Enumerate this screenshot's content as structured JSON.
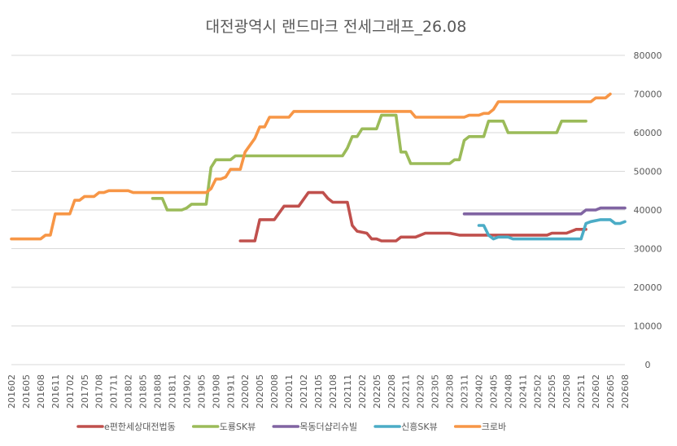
{
  "chart_data": {
    "type": "line",
    "title": "대전광역시 랜드마크 전세그래프_26.08",
    "xlabel": "",
    "ylabel": "",
    "ylim": [
      0,
      80000
    ],
    "yticks": [
      0,
      10000,
      20000,
      30000,
      40000,
      50000,
      60000,
      70000,
      80000
    ],
    "ytick_labels": [
      "0",
      "10000",
      "20000",
      "30000",
      "40000",
      "50000",
      "60000",
      "70000",
      "80000"
    ],
    "y_axis_side": "right",
    "grid": true,
    "legend_position": "bottom",
    "xtick_labels": [
      "201602",
      "201605",
      "201608",
      "201611",
      "201702",
      "201705",
      "201708",
      "201711",
      "201802",
      "201805",
      "201808",
      "201811",
      "201902",
      "201905",
      "201908",
      "201911",
      "202002",
      "202005",
      "202008",
      "202011",
      "202102",
      "202105",
      "202108",
      "202111",
      "202202",
      "202205",
      "202208",
      "202211",
      "202302",
      "202305",
      "202308",
      "202311",
      "202402",
      "202405",
      "202408",
      "202411",
      "202502",
      "202505",
      "202508",
      "202511",
      "202602",
      "202605",
      "202608"
    ],
    "x_unit": "monthly (YYYYMM), 201602 to 202608",
    "series": [
      {
        "name": "e편한세상대전법동",
        "color": "#c0504d",
        "points": [
          [
            "202001",
            32000
          ],
          [
            "202004",
            32000
          ],
          [
            "202005",
            37500
          ],
          [
            "202008",
            37500
          ],
          [
            "202010",
            41000
          ],
          [
            "202101",
            41000
          ],
          [
            "202103",
            44500
          ],
          [
            "202106",
            44500
          ],
          [
            "202107",
            43000
          ],
          [
            "202108",
            42000
          ],
          [
            "202111",
            42000
          ],
          [
            "202112",
            36000
          ],
          [
            "202201",
            34500
          ],
          [
            "202203",
            34000
          ],
          [
            "202204",
            32500
          ],
          [
            "202205",
            32500
          ],
          [
            "202206",
            32000
          ],
          [
            "202209",
            32000
          ],
          [
            "202210",
            33000
          ],
          [
            "202301",
            33000
          ],
          [
            "202302",
            33500
          ],
          [
            "202303",
            34000
          ],
          [
            "202308",
            34000
          ],
          [
            "202310",
            33500
          ],
          [
            "202403",
            33500
          ],
          [
            "202504",
            33500
          ],
          [
            "202505",
            34000
          ],
          [
            "202508",
            34000
          ],
          [
            "202510",
            35000
          ],
          [
            "202512",
            35000
          ]
        ]
      },
      {
        "name": "도룡SK뷰",
        "color": "#9bbb59",
        "points": [
          [
            "201807",
            43000
          ],
          [
            "201809",
            43000
          ],
          [
            "201810",
            40000
          ],
          [
            "201901",
            40000
          ],
          [
            "201902",
            40500
          ],
          [
            "201903",
            41500
          ],
          [
            "201906",
            41500
          ],
          [
            "201907",
            51000
          ],
          [
            "201908",
            53000
          ],
          [
            "201911",
            53000
          ],
          [
            "201912",
            54000
          ],
          [
            "202008",
            54000
          ],
          [
            "202110",
            54000
          ],
          [
            "202111",
            56000
          ],
          [
            "202112",
            59000
          ],
          [
            "202201",
            59000
          ],
          [
            "202202",
            61000
          ],
          [
            "202205",
            61000
          ],
          [
            "202206",
            64500
          ],
          [
            "202209",
            64500
          ],
          [
            "202210",
            55000
          ],
          [
            "202211",
            55000
          ],
          [
            "202212",
            52000
          ],
          [
            "202308",
            52000
          ],
          [
            "202309",
            53000
          ],
          [
            "202310",
            53000
          ],
          [
            "202311",
            58000
          ],
          [
            "202312",
            59000
          ],
          [
            "202403",
            59000
          ],
          [
            "202404",
            63000
          ],
          [
            "202407",
            63000
          ],
          [
            "202408",
            60000
          ],
          [
            "202506",
            60000
          ],
          [
            "202507",
            63000
          ],
          [
            "202512",
            63000
          ]
        ]
      },
      {
        "name": "목동더샵리슈빌",
        "color": "#8064a2",
        "points": [
          [
            "202311",
            39000
          ],
          [
            "202511",
            39000
          ],
          [
            "202512",
            40000
          ],
          [
            "202602",
            40000
          ],
          [
            "202603",
            40500
          ],
          [
            "202608",
            40500
          ]
        ]
      },
      {
        "name": "신흥SK뷰",
        "color": "#4bacc6",
        "points": [
          [
            "202402",
            36000
          ],
          [
            "202403",
            36000
          ],
          [
            "202404",
            33500
          ],
          [
            "202405",
            32500
          ],
          [
            "202406",
            33000
          ],
          [
            "202408",
            33000
          ],
          [
            "202409",
            32500
          ],
          [
            "202511",
            32500
          ],
          [
            "202512",
            36500
          ],
          [
            "202601",
            37000
          ],
          [
            "202603",
            37500
          ],
          [
            "202605",
            37500
          ],
          [
            "202606",
            36500
          ],
          [
            "202607",
            36500
          ],
          [
            "202608",
            37000
          ]
        ]
      },
      {
        "name": "크로바",
        "color": "#f79646",
        "points": [
          [
            "201602",
            32500
          ],
          [
            "201608",
            32500
          ],
          [
            "201609",
            33500
          ],
          [
            "201610",
            33500
          ],
          [
            "201611",
            39000
          ],
          [
            "201702",
            39000
          ],
          [
            "201703",
            42500
          ],
          [
            "201704",
            42500
          ],
          [
            "201705",
            43500
          ],
          [
            "201707",
            43500
          ],
          [
            "201708",
            44500
          ],
          [
            "201709",
            44500
          ],
          [
            "201710",
            45000
          ],
          [
            "201802",
            45000
          ],
          [
            "201803",
            44500
          ],
          [
            "201906",
            44500
          ],
          [
            "201907",
            45500
          ],
          [
            "201908",
            48000
          ],
          [
            "201909",
            48000
          ],
          [
            "201910",
            48500
          ],
          [
            "201911",
            50500
          ],
          [
            "202001",
            50500
          ],
          [
            "202002",
            55000
          ],
          [
            "202004",
            58500
          ],
          [
            "202005",
            61500
          ],
          [
            "202006",
            61500
          ],
          [
            "202007",
            64000
          ],
          [
            "202011",
            64000
          ],
          [
            "202012",
            65500
          ],
          [
            "202212",
            65500
          ],
          [
            "202301",
            64000
          ],
          [
            "202311",
            64000
          ],
          [
            "202312",
            64500
          ],
          [
            "202402",
            64500
          ],
          [
            "202403",
            65000
          ],
          [
            "202404",
            65000
          ],
          [
            "202405",
            66000
          ],
          [
            "202406",
            68000
          ],
          [
            "202601",
            68000
          ],
          [
            "202602",
            69000
          ],
          [
            "202604",
            69000
          ],
          [
            "202605",
            70000
          ]
        ]
      }
    ]
  }
}
